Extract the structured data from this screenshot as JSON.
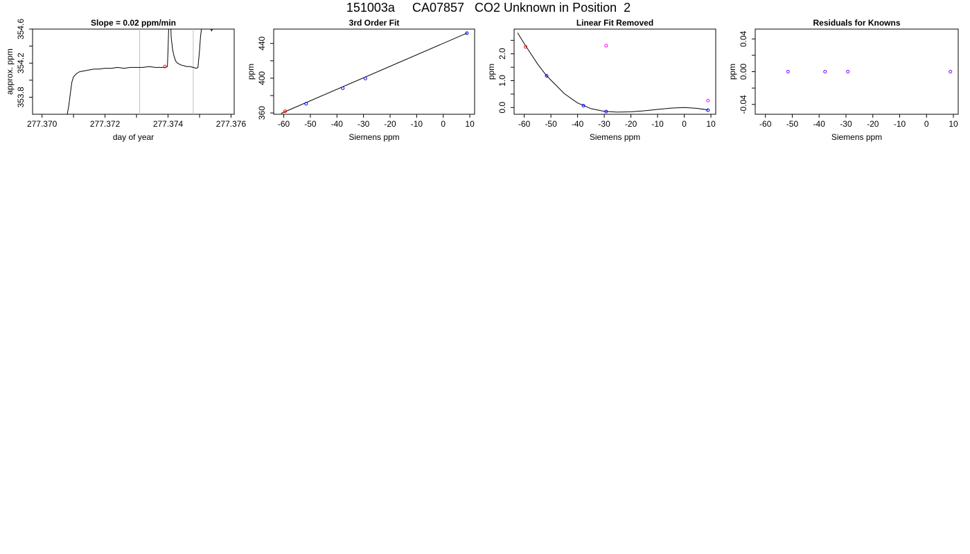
{
  "page_title": "151003a     CA07857   CO2 Unknown in Position  2",
  "colors": {
    "line": "#000000",
    "point_blue": "#0000ff",
    "point_red": "#ff0000",
    "point_magenta": "#ff00ff",
    "point_purple": "#8000ff",
    "vline": "#bebebe"
  },
  "chart_data": [
    {
      "type": "line",
      "title": "Slope =  0.02  ppm/min",
      "xlabel": "day of year",
      "ylabel": "approx. ppm",
      "xlim": [
        277.3697,
        277.3761
      ],
      "ylim": [
        353.6,
        354.6
      ],
      "x_ticks": [
        277.37,
        277.372,
        277.374,
        277.376
      ],
      "x_tick_labels": [
        "277.370",
        "277.372",
        "277.374",
        "277.376"
      ],
      "x_minor_ticks": [
        277.371,
        277.373,
        277.375
      ],
      "y_ticks": [
        353.8,
        354.2,
        354.6
      ],
      "y_tick_labels": [
        "353.8",
        "354.2",
        "354.6"
      ],
      "y_minor_ticks": [
        354.0,
        354.4
      ],
      "vlines": [
        277.3731,
        277.3748
      ],
      "series": [
        {
          "x": [
            277.3708,
            277.37085,
            277.3709,
            277.37095,
            277.371,
            277.3711,
            277.3712,
            277.37135,
            277.3715,
            277.37165,
            277.3718,
            277.372,
            277.3722,
            277.3724,
            277.3726,
            277.3728,
            277.373,
            277.3732,
            277.3734,
            277.3736,
            277.3738,
            277.37393,
            277.37398,
            277.374,
            277.37402,
            277.37404,
            277.37406,
            277.37408,
            277.3741,
            277.37415,
            277.3742,
            277.37425,
            277.3743,
            277.3744,
            277.3745,
            277.3746,
            277.3747,
            277.3748,
            277.3749,
            277.37495,
            277.375,
            277.37503,
            277.37506,
            277.37509,
            277.37512,
            277.37515,
            277.3752,
            277.3753,
            277.37538,
            277.37545
          ],
          "y": [
            353.6,
            353.7,
            353.85,
            353.98,
            354.04,
            354.08,
            354.1,
            354.11,
            354.12,
            354.13,
            354.13,
            354.14,
            354.14,
            354.15,
            354.14,
            354.15,
            354.15,
            354.15,
            354.16,
            354.15,
            354.15,
            354.15,
            354.16,
            354.35,
            354.6,
            354.75,
            354.8,
            354.7,
            354.5,
            354.35,
            354.27,
            354.22,
            354.2,
            354.18,
            354.17,
            354.16,
            354.16,
            354.15,
            354.14,
            354.15,
            354.35,
            354.5,
            354.6,
            354.75,
            354.9,
            355.0,
            354.8,
            354.65,
            354.58,
            354.62
          ]
        }
      ],
      "points": [
        {
          "x": 277.3739,
          "y": 354.16,
          "color": "red"
        }
      ]
    },
    {
      "type": "scatter",
      "title": "3rd Order Fit",
      "xlabel": "Siemens ppm",
      "ylabel": "ppm",
      "xlim": [
        -63.8,
        11.8
      ],
      "ylim": [
        358.5,
        456.5
      ],
      "x_ticks": [
        -60,
        -50,
        -40,
        -30,
        -20,
        -10,
        0,
        10
      ],
      "x_tick_labels": [
        "-60",
        "-50",
        "-40",
        "-30",
        "-20",
        "-10",
        "0",
        "10"
      ],
      "y_ticks": [
        360,
        400,
        440
      ],
      "y_tick_labels": [
        "360",
        "400",
        "440"
      ],
      "y_minor_ticks": [
        380,
        420
      ],
      "fit_line": [
        [
          -61,
          359.5
        ],
        [
          9,
          452
        ]
      ],
      "points": [
        {
          "x": -59.5,
          "y": 362.0,
          "color": "red"
        },
        {
          "x": -51.6,
          "y": 370.6,
          "color": "blue"
        },
        {
          "x": -37.8,
          "y": 388.5,
          "color": "blue"
        },
        {
          "x": -29.3,
          "y": 399.6,
          "color": "blue"
        },
        {
          "x": 8.9,
          "y": 451.8,
          "color": "blue"
        }
      ]
    },
    {
      "type": "scatter",
      "title": "Linear Fit Removed",
      "xlabel": "Siemens ppm",
      "ylabel": "ppm",
      "xlim": [
        -63.8,
        11.8
      ],
      "ylim": [
        -0.25,
        2.92
      ],
      "x_ticks": [
        -60,
        -50,
        -40,
        -30,
        -20,
        -10,
        0,
        10
      ],
      "x_tick_labels": [
        "-60",
        "-50",
        "-40",
        "-30",
        "-20",
        "-10",
        "0",
        "10"
      ],
      "y_ticks": [
        0.0,
        1.0,
        2.0
      ],
      "y_tick_labels": [
        "0.0",
        "1.0",
        "2.0"
      ],
      "y_minor_ticks": [
        0.5,
        1.5,
        2.5
      ],
      "curve": [
        [
          -62.5,
          2.78
        ],
        [
          -60,
          2.38
        ],
        [
          -55,
          1.62
        ],
        [
          -51.6,
          1.18
        ],
        [
          -45,
          0.52
        ],
        [
          -40,
          0.17
        ],
        [
          -37.8,
          0.08
        ],
        [
          -35,
          -0.04
        ],
        [
          -30,
          -0.14
        ],
        [
          -25,
          -0.17
        ],
        [
          -20,
          -0.16
        ],
        [
          -15,
          -0.12
        ],
        [
          -10,
          -0.07
        ],
        [
          -5,
          -0.02
        ],
        [
          0,
          0.0
        ],
        [
          5,
          -0.03
        ],
        [
          8.9,
          -0.09
        ]
      ],
      "points": [
        {
          "x": -59.5,
          "y": 2.26,
          "color": "red"
        },
        {
          "x": -51.6,
          "y": 1.18,
          "color": "blue"
        },
        {
          "x": -37.8,
          "y": 0.07,
          "color": "blue"
        },
        {
          "x": -29.3,
          "y": -0.15,
          "color": "blue"
        },
        {
          "x": 8.9,
          "y": -0.1,
          "color": "blue"
        },
        {
          "x": -29.3,
          "y": 2.3,
          "color": "magenta"
        },
        {
          "x": 8.9,
          "y": 0.26,
          "color": "magenta"
        }
      ]
    },
    {
      "type": "scatter",
      "title": "Residuals for Knowns",
      "xlabel": "Siemens ppm",
      "ylabel": "ppm",
      "xlim": [
        -63.8,
        11.8
      ],
      "ylim": [
        -0.052,
        0.052
      ],
      "x_ticks": [
        -60,
        -50,
        -40,
        -30,
        -20,
        -10,
        0,
        10
      ],
      "x_tick_labels": [
        "-60",
        "-50",
        "-40",
        "-30",
        "-20",
        "-10",
        "0",
        "10"
      ],
      "y_ticks": [
        -0.04,
        0.0,
        0.04
      ],
      "y_tick_labels": [
        "-0.04",
        "0.00",
        "0.04"
      ],
      "y_minor_ticks": [
        -0.02,
        0.02
      ],
      "points": [
        {
          "x": -51.6,
          "y": 0.0,
          "color": "purple"
        },
        {
          "x": -37.8,
          "y": 0.0,
          "color": "purple"
        },
        {
          "x": -29.3,
          "y": 0.0,
          "color": "purple"
        },
        {
          "x": 8.9,
          "y": 0.0,
          "color": "purple"
        }
      ]
    }
  ]
}
